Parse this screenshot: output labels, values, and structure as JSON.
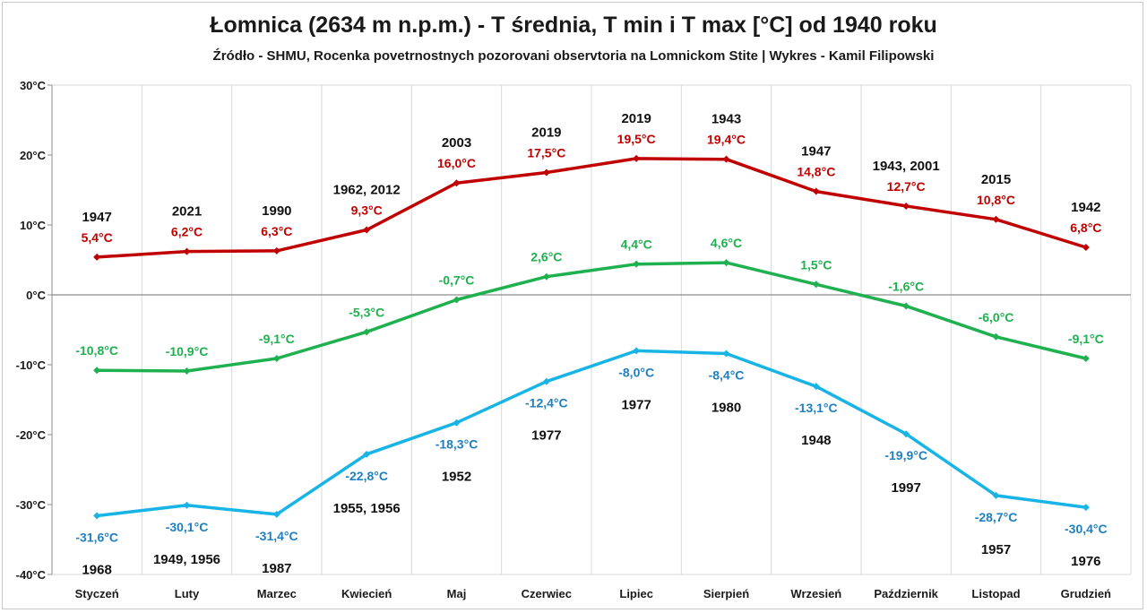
{
  "title": "Łomnica (2634 m n.p.m.) - T średnia, T min i T max [°C] od 1940 roku",
  "subtitle": "Źródło - SHMU, Rocenka povetrnostnych pozorovani observtoria na Lomnickom Stite | Wykres - Kamil Filipowski",
  "chart_data": {
    "type": "line",
    "categories": [
      "Styczeń",
      "Luty",
      "Marzec",
      "Kwiecień",
      "Maj",
      "Czerwiec",
      "Lipiec",
      "Sierpień",
      "Wrzesień",
      "Październik",
      "Listopad",
      "Grudzień"
    ],
    "ylim": [
      -40,
      30
    ],
    "yticks": [
      30,
      20,
      10,
      0,
      -10,
      -20,
      -30,
      -40
    ],
    "ytick_labels": [
      "30°C",
      "20°C",
      "10°C",
      "0°C",
      "-10°C",
      "-20°C",
      "-30°C",
      "-40°C"
    ],
    "vertical_grid": true,
    "horizontal_grid": false,
    "legend": "none",
    "series": [
      {
        "key": "tmax",
        "color": "#c00000",
        "values": [
          5.4,
          6.2,
          6.3,
          9.3,
          16.0,
          17.5,
          19.5,
          19.4,
          14.8,
          12.7,
          10.8,
          6.8
        ],
        "labels": [
          "5,4°C",
          "6,2°C",
          "6,3°C",
          "9,3°C",
          "16,0°C",
          "17,5°C",
          "19,5°C",
          "19,4°C",
          "14,8°C",
          "12,7°C",
          "10,8°C",
          "6,8°C"
        ],
        "years": [
          "1947",
          "2021",
          "1990",
          "1962, 2012",
          "2003",
          "2019",
          "2019",
          "1943",
          "1947",
          "1943, 2001",
          "2015",
          "1942"
        ]
      },
      {
        "key": "tmean",
        "color": "#1fb04f",
        "values": [
          -10.8,
          -10.9,
          -9.1,
          -5.3,
          -0.7,
          2.6,
          4.4,
          4.6,
          1.5,
          -1.6,
          -6.0,
          -9.1
        ],
        "labels": [
          "-10,8°C",
          "-10,9°C",
          "-9,1°C",
          "-5,3°C",
          "-0,7°C",
          "2,6°C",
          "4,4°C",
          "4,6°C",
          "1,5°C",
          "-1,6°C",
          "-6,0°C",
          "-9,1°C"
        ]
      },
      {
        "key": "tmin",
        "color": "#19b4e6",
        "label_color": "#1f7fbf",
        "values": [
          -31.6,
          -30.1,
          -31.4,
          -22.8,
          -18.3,
          -12.4,
          -8.0,
          -8.4,
          -13.1,
          -19.9,
          -28.7,
          -30.4
        ],
        "labels": [
          "-31,6°C",
          "-30,1°C",
          "-31,4°C",
          "-22,8°C",
          "-18,3°C",
          "-12,4°C",
          "-8,0°C",
          "-8,4°C",
          "-13,1°C",
          "-19,9°C",
          "-28,7°C",
          "-30,4°C"
        ],
        "years": [
          "1968",
          "1949, 1956",
          "1987",
          "1955, 1956",
          "1952",
          "1977",
          "1977",
          "1980",
          "1948",
          "1997",
          "1957",
          "1976"
        ]
      }
    ]
  }
}
